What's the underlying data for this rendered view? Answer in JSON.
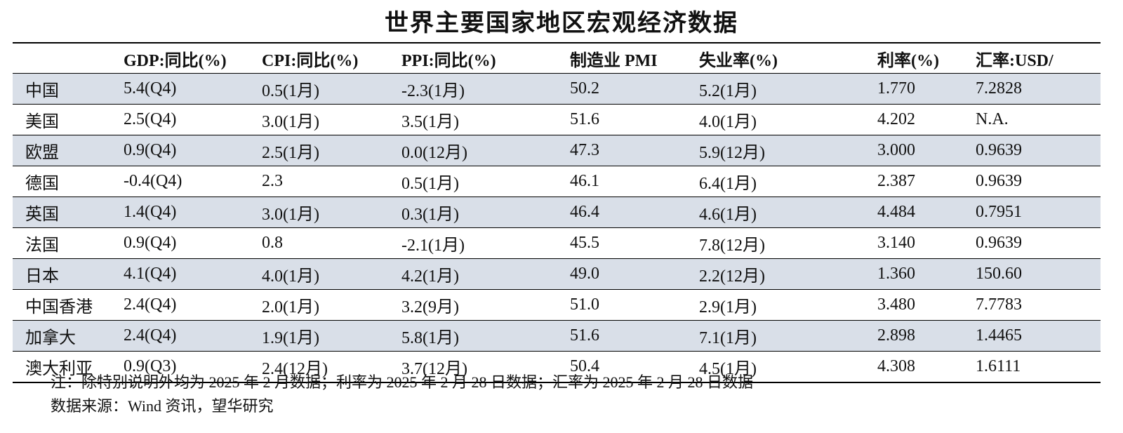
{
  "title": "世界主要国家地区宏观经济数据",
  "table": {
    "headers": [
      "",
      "GDP:同比(%)",
      "CPI:同比(%)",
      "PPI:同比(%)",
      "制造业 PMI",
      "失业率(%)",
      "利率(%)",
      "汇率:USD/"
    ],
    "rows": [
      [
        "中国",
        "5.4(Q4)",
        "0.5(1月)",
        "-2.3(1月)",
        "50.2",
        "5.2(1月)",
        "1.770",
        "7.2828"
      ],
      [
        "美国",
        "2.5(Q4)",
        "3.0(1月)",
        "3.5(1月)",
        "51.6",
        "4.0(1月)",
        "4.202",
        "N.A."
      ],
      [
        "欧盟",
        "0.9(Q4)",
        "2.5(1月)",
        "0.0(12月)",
        "47.3",
        "5.9(12月)",
        "3.000",
        "0.9639"
      ],
      [
        "德国",
        "-0.4(Q4)",
        "2.3",
        "0.5(1月)",
        "46.1",
        "6.4(1月)",
        "2.387",
        "0.9639"
      ],
      [
        "英国",
        "1.4(Q4)",
        "3.0(1月)",
        "0.3(1月)",
        "46.4",
        "4.6(1月)",
        "4.484",
        "0.7951"
      ],
      [
        "法国",
        "0.9(Q4)",
        "0.8",
        "-2.1(1月)",
        "45.5",
        "7.8(12月)",
        "3.140",
        "0.9639"
      ],
      [
        "日本",
        "4.1(Q4)",
        "4.0(1月)",
        "4.2(1月)",
        "49.0",
        "2.2(12月)",
        "1.360",
        "150.60"
      ],
      [
        "中国香港",
        "2.4(Q4)",
        "2.0(1月)",
        "3.2(9月)",
        "51.0",
        "2.9(1月)",
        "3.480",
        "7.7783"
      ],
      [
        "加拿大",
        "2.4(Q4)",
        "1.9(1月)",
        "5.8(1月)",
        "51.6",
        "7.1(1月)",
        "2.898",
        "1.4465"
      ],
      [
        "澳大利亚",
        "0.9(Q3)",
        "2.4(12月)",
        "3.7(12月)",
        "50.4",
        "4.5(1月)",
        "4.308",
        "1.6111"
      ]
    ],
    "shade_color": "#d9dfe8"
  },
  "notes": {
    "note": "注：除特别说明外均为 2025 年 2 月数据；利率为 2025 年 2 月 28 日数据；汇率为 2025 年 2 月 28 日数据",
    "source": "数据来源：Wind 资讯，望华研究"
  }
}
